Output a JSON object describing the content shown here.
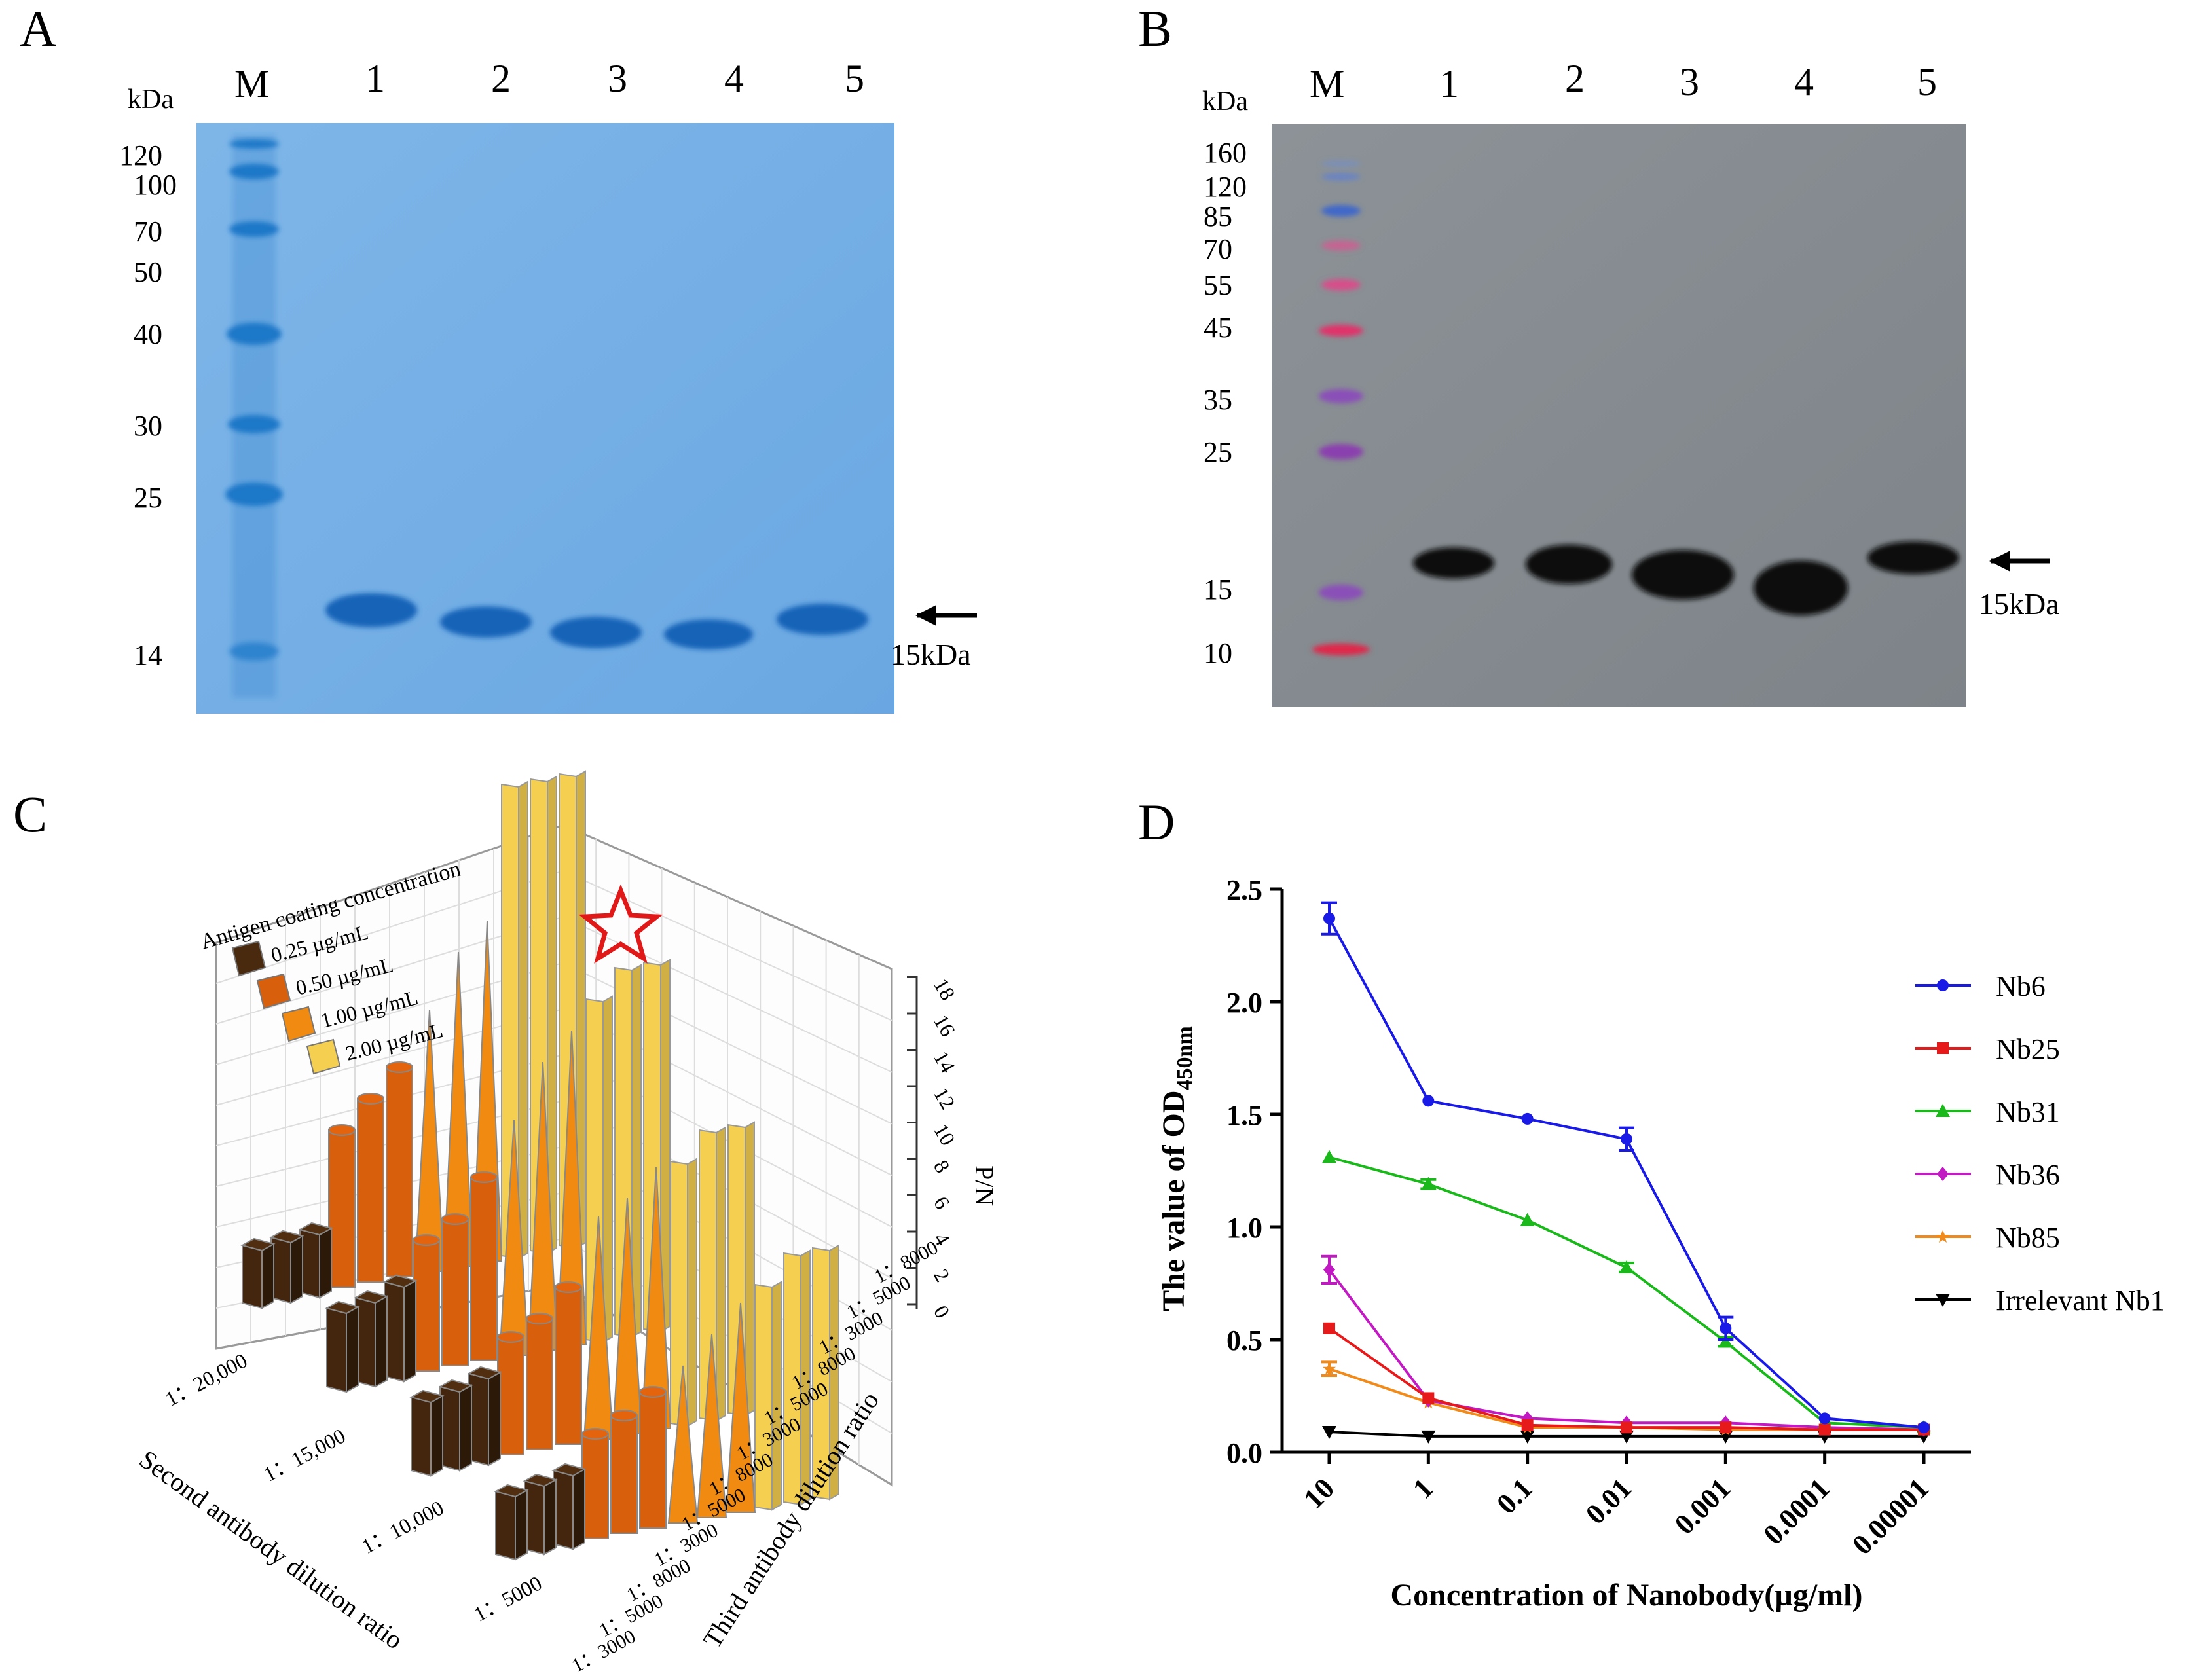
{
  "panelA": {
    "letter": "A",
    "kda_label": "kDa",
    "lane_labels": [
      "M",
      "1",
      "2",
      "3",
      "4",
      "5"
    ],
    "markers": [
      "120",
      "100",
      "70",
      "50",
      "40",
      "30",
      "25",
      "14"
    ],
    "target_label": "15kDa"
  },
  "panelB": {
    "letter": "B",
    "kda_label": "kDa",
    "lane_labels": [
      "M",
      "1",
      "2",
      "3",
      "4",
      "5"
    ],
    "markers": [
      "160",
      "120",
      "85",
      "70",
      "55",
      "45",
      "35",
      "25",
      "15",
      "10"
    ],
    "target_label": "15kDa"
  },
  "panelC": {
    "letter": "C",
    "legend_title": "Antigen coating concentration",
    "legend_items": [
      "0.25 µg/mL",
      "0.50 µg/mL",
      "1.00 µg/mL",
      "2.00 µg/mL"
    ],
    "legend_colors": [
      "#4a2a0e",
      "#d85f0c",
      "#f08a10",
      "#f5cf50"
    ],
    "z_label": "P/N",
    "z_ticks": [
      "0",
      "2",
      "4",
      "6",
      "8",
      "10",
      "12",
      "14",
      "16",
      "18"
    ],
    "x_label": "Second antibody dilution ratio",
    "x_ticks": [
      "1：20,000",
      "1：15,000",
      "1：10,000",
      "1：5000"
    ],
    "y_label": "Third antibody dilution ratio",
    "y_ticks": [
      "1：3000",
      "1：5000",
      "1：8000",
      "1：3000",
      "1：5000",
      "1：8000",
      "1：3000",
      "1：5000",
      "1：8000",
      "1：3000",
      "1：5000",
      "1：8000"
    ]
  },
  "panelD": {
    "letter": "D"
  },
  "chart_data": {
    "type": "line",
    "title": "",
    "xlabel": "Concentration of Nanobody(µg/ml)",
    "ylabel_main": "The value of OD",
    "ylabel_sub": "450nm",
    "categories": [
      "10",
      "1",
      "0.1",
      "0.01",
      "0.001",
      "0.0001",
      "0.00001"
    ],
    "ylim": [
      0.0,
      2.5
    ],
    "yticks": [
      "0.0",
      "0.5",
      "1.0",
      "1.5",
      "2.0",
      "2.5"
    ],
    "legend_position": "right",
    "series": [
      {
        "name": "Nb6",
        "color": "#1a1ae6",
        "marker": "circle",
        "values": [
          2.37,
          1.56,
          1.48,
          1.39,
          0.55,
          0.15,
          0.11
        ],
        "errors": [
          0.07,
          0,
          0,
          0.05,
          0.05,
          0,
          0
        ]
      },
      {
        "name": "Nb25",
        "color": "#e61a1a",
        "marker": "square",
        "values": [
          0.55,
          0.24,
          0.12,
          0.11,
          0.11,
          0.1,
          0.1
        ],
        "errors": [
          0,
          0,
          0,
          0,
          0,
          0,
          0
        ]
      },
      {
        "name": "Nb31",
        "color": "#1ab81a",
        "marker": "triangle",
        "values": [
          1.31,
          1.19,
          1.03,
          0.82,
          0.49,
          0.13,
          0.11
        ],
        "errors": [
          0,
          0.02,
          0,
          0.02,
          0.02,
          0,
          0
        ]
      },
      {
        "name": "Nb36",
        "color": "#c21ac2",
        "marker": "diamond",
        "values": [
          0.81,
          0.23,
          0.15,
          0.13,
          0.13,
          0.11,
          0.1
        ],
        "errors": [
          0.06,
          0,
          0,
          0,
          0,
          0,
          0
        ]
      },
      {
        "name": "Nb85",
        "color": "#f08a1a",
        "marker": "star",
        "values": [
          0.37,
          0.22,
          0.11,
          0.11,
          0.1,
          0.1,
          0.1
        ],
        "errors": [
          0.03,
          0,
          0,
          0,
          0,
          0,
          0
        ]
      },
      {
        "name": "Irrelevant Nb1",
        "color": "#000000",
        "marker": "triangle-down",
        "values": [
          0.09,
          0.07,
          0.07,
          0.07,
          0.07,
          0.07,
          0.07
        ],
        "errors": [
          0,
          0,
          0,
          0,
          0,
          0,
          0
        ]
      }
    ]
  }
}
